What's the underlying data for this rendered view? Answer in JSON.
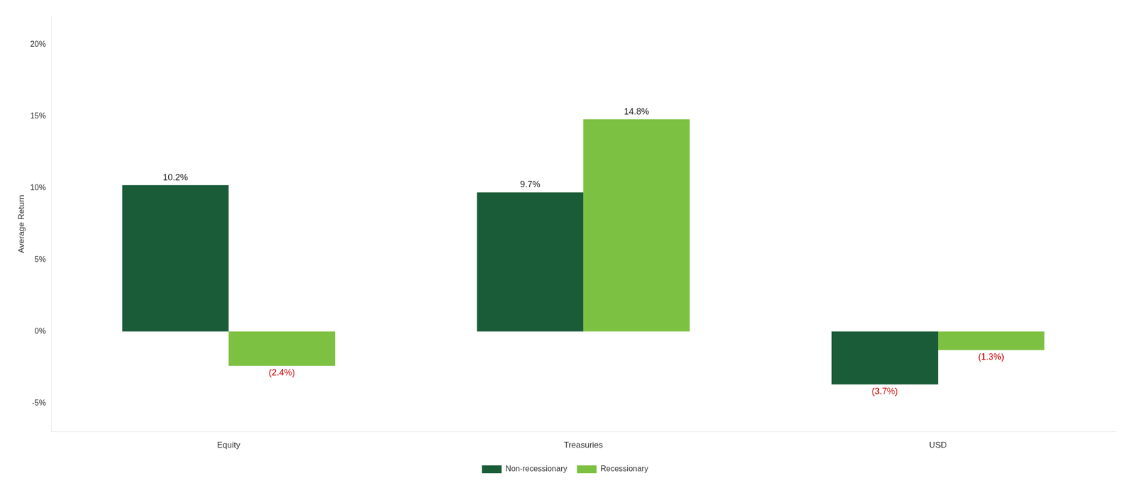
{
  "chart_data": {
    "type": "bar",
    "categories": [
      "Equity",
      "Treasuries",
      "USD"
    ],
    "series": [
      {
        "name": "Non-recessionary",
        "color": "#1a5c38",
        "values": [
          10.2,
          9.7,
          -3.7
        ],
        "value_labels": [
          "10.2%",
          "9.7%",
          "(3.7%)"
        ]
      },
      {
        "name": "Recessionary",
        "color": "#7dc142",
        "values": [
          -2.4,
          14.8,
          -1.3
        ],
        "value_labels": [
          "(2.4%)",
          "14.8%",
          "(1.3%)"
        ]
      }
    ],
    "ylabel": "Average Return",
    "ylim": [
      -7,
      22
    ],
    "yticks": [
      {
        "value": -5,
        "label": "-5%"
      },
      {
        "value": 0,
        "label": "0%"
      },
      {
        "value": 5,
        "label": "5%"
      },
      {
        "value": 10,
        "label": "10%"
      },
      {
        "value": 15,
        "label": "15%"
      },
      {
        "value": 20,
        "label": "20%"
      }
    ],
    "grid": false,
    "legend": "bottom",
    "data_labels": true
  }
}
